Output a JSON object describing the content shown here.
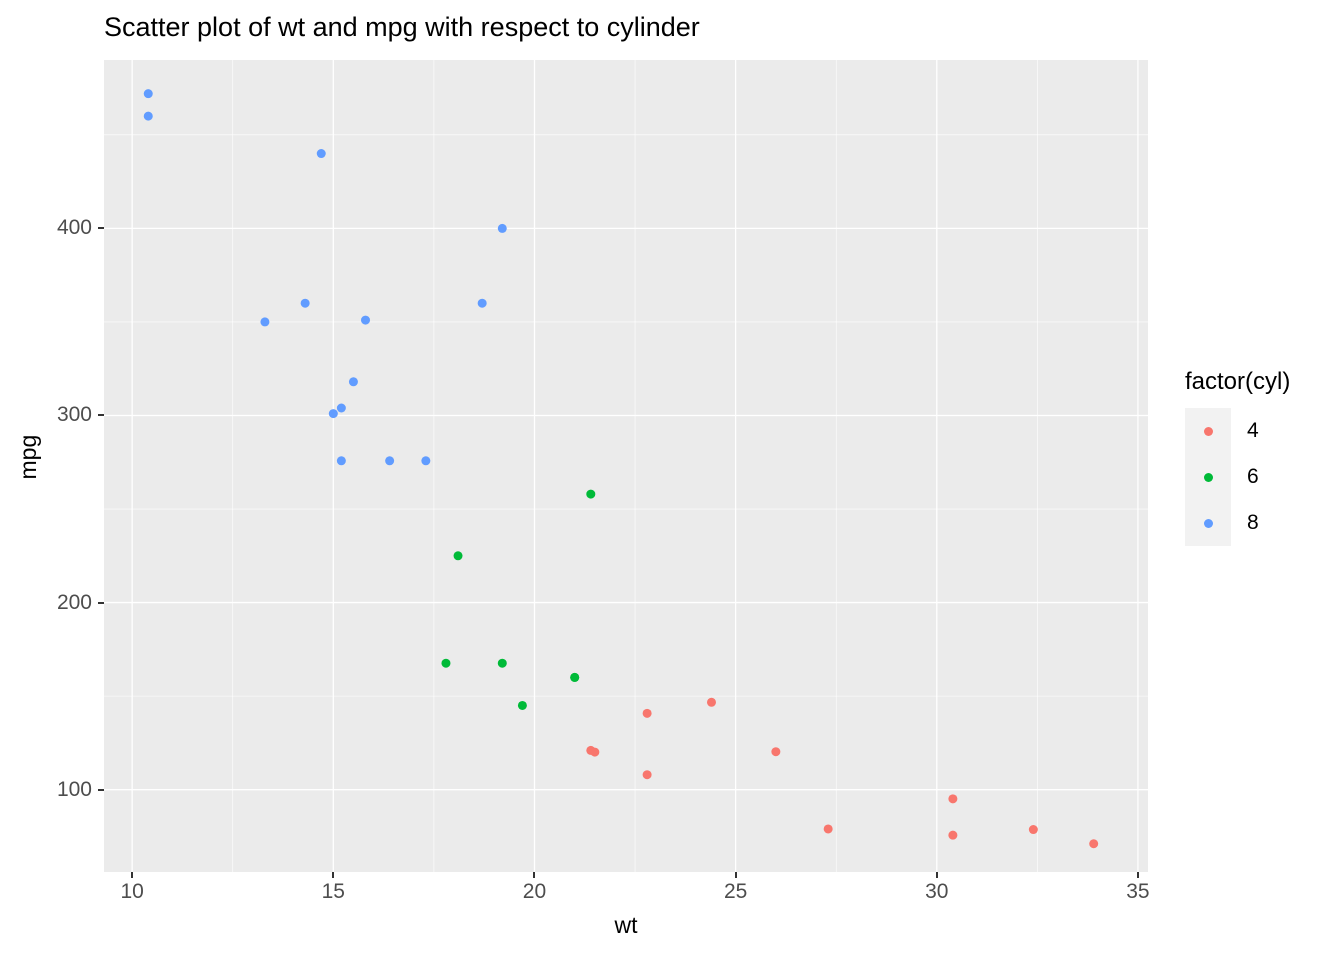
{
  "title": "Scatter plot of wt and mpg with respect to cylinder",
  "chart_data": {
    "type": "scatter",
    "title": "Scatter plot of wt and mpg with respect to cylinder",
    "xlabel": "wt",
    "ylabel": "mpg",
    "xlim": [
      9.3,
      35.25
    ],
    "ylim": [
      56,
      490
    ],
    "x_ticks": [
      10,
      15,
      20,
      25,
      30,
      35
    ],
    "y_ticks": [
      100,
      200,
      300,
      400
    ],
    "x_minor_ticks": [
      12.5,
      17.5,
      22.5,
      27.5,
      32.5
    ],
    "y_minor_ticks": [
      150,
      250,
      350,
      450
    ],
    "grid": true,
    "panel_bg": "#EBEBEB",
    "grid_color": "#FFFFFF",
    "point_radius": 4.5,
    "legend": {
      "title": "factor(cyl)",
      "position": "right",
      "entries": [
        {
          "label": "4",
          "color": "#F8766D"
        },
        {
          "label": "6",
          "color": "#00BA38"
        },
        {
          "label": "8",
          "color": "#619CFF"
        }
      ]
    },
    "series": [
      {
        "name": "4",
        "color": "#F8766D",
        "points": [
          [
            22.8,
            108
          ],
          [
            24.4,
            146.7
          ],
          [
            22.8,
            140.8
          ],
          [
            32.4,
            78.7
          ],
          [
            30.4,
            75.7
          ],
          [
            33.9,
            71.1
          ],
          [
            21.5,
            120.1
          ],
          [
            27.3,
            79
          ],
          [
            26.0,
            120.3
          ],
          [
            30.4,
            95.1
          ],
          [
            21.4,
            121
          ]
        ]
      },
      {
        "name": "6",
        "color": "#00BA38",
        "points": [
          [
            21.0,
            160
          ],
          [
            21.0,
            160
          ],
          [
            21.4,
            258
          ],
          [
            18.1,
            225
          ],
          [
            19.2,
            167.6
          ],
          [
            17.8,
            167.6
          ],
          [
            19.7,
            145
          ]
        ]
      },
      {
        "name": "8",
        "color": "#619CFF",
        "points": [
          [
            18.7,
            360
          ],
          [
            14.3,
            360
          ],
          [
            16.4,
            275.8
          ],
          [
            17.3,
            275.8
          ],
          [
            15.2,
            275.8
          ],
          [
            10.4,
            472
          ],
          [
            10.4,
            460
          ],
          [
            14.7,
            440
          ],
          [
            15.5,
            318
          ],
          [
            15.2,
            304
          ],
          [
            13.3,
            350
          ],
          [
            19.2,
            400
          ],
          [
            15.8,
            351
          ],
          [
            15.0,
            301
          ]
        ]
      }
    ]
  }
}
